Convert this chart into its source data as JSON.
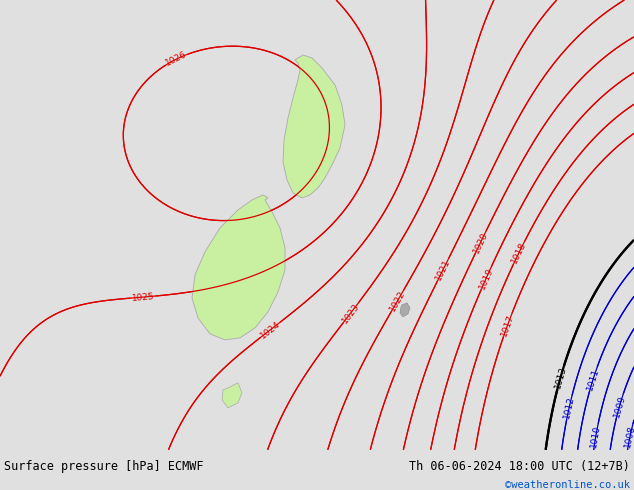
{
  "title_left": "Surface pressure [hPa] ECMWF",
  "title_right": "Th 06-06-2024 18:00 UTC (12+7B)",
  "credit": "©weatheronline.co.uk",
  "bg_color": "#e0e0e0",
  "land_color": "#c8f0a0",
  "map_bg": "#e0e0e0",
  "red_contour_color": "#dd0000",
  "black_contour_color": "#000000",
  "blue_contour_color": "#0000cc",
  "bottom_bar_color": "#c8c8c8",
  "bottom_text_color": "#000000",
  "credit_color": "#0055cc",
  "figsize": [
    6.34,
    4.9
  ],
  "dpi": 100
}
